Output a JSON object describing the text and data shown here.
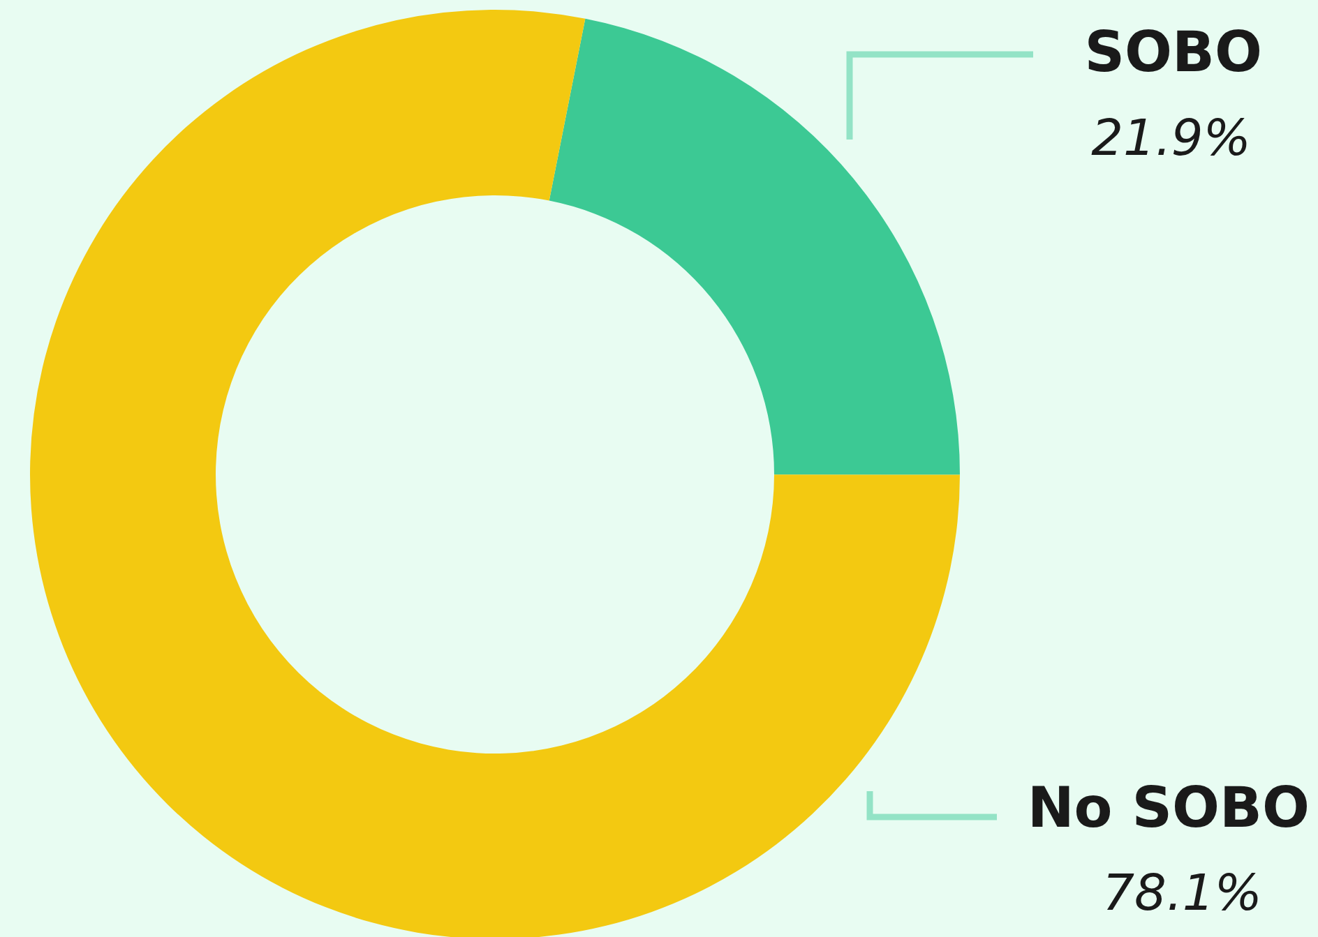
{
  "chart_data": {
    "type": "donut",
    "categories": [
      "SOBO",
      "No SOBO"
    ],
    "values": [
      21.9,
      78.1
    ],
    "colors": [
      "#3cc994",
      "#f3c911"
    ],
    "value_labels": [
      "21.9%",
      "78.1%"
    ]
  }
}
